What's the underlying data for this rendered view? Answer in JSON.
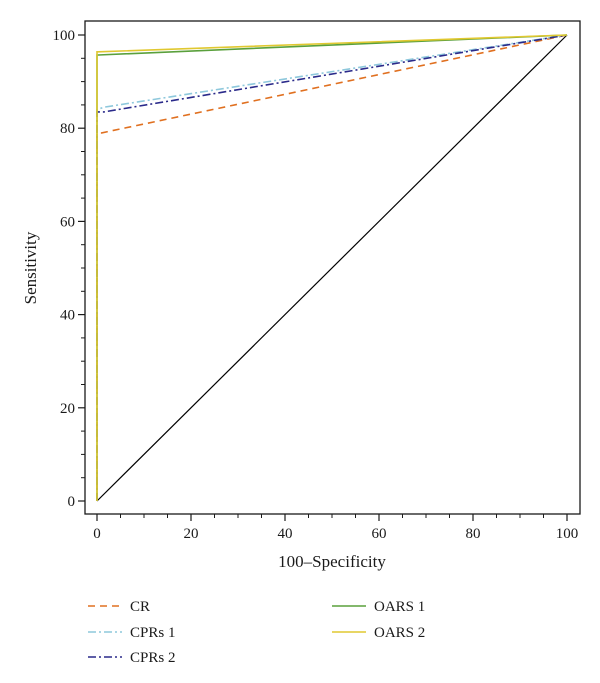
{
  "chart_data": {
    "type": "line",
    "xlabel": "100–Specificity",
    "ylabel": "Sensitivity",
    "xlim": [
      0,
      100
    ],
    "ylim": [
      0,
      100
    ],
    "xticks": [
      "0",
      "20",
      "40",
      "60",
      "80",
      "100"
    ],
    "yticks": [
      "0",
      "20",
      "40",
      "60",
      "80",
      "100"
    ],
    "grid": false,
    "legend_position": "bottom",
    "diagonal": {
      "x": [
        0,
        100
      ],
      "y": [
        0,
        100
      ],
      "color": "#000000"
    },
    "series": [
      {
        "name": "CR",
        "color": "#e07020",
        "dash": "dashed",
        "x": [
          0,
          0,
          1,
          100
        ],
        "y": [
          0,
          79,
          79,
          100
        ]
      },
      {
        "name": "CPRs 1",
        "color": "#8ec8dc",
        "dash": "dashdot",
        "x": [
          0,
          0,
          1.5,
          100
        ],
        "y": [
          0,
          84,
          84.5,
          100
        ]
      },
      {
        "name": "CPRs 2",
        "color": "#2a2a8a",
        "dash": "dashdot",
        "x": [
          0,
          0,
          1.5,
          100
        ],
        "y": [
          0,
          83.5,
          83.5,
          100
        ]
      },
      {
        "name": "OARS 1",
        "color": "#5aa03c",
        "dash": "solid",
        "x": [
          0,
          0,
          0.3,
          100
        ],
        "y": [
          0,
          95.7,
          95.7,
          100
        ]
      },
      {
        "name": "OARS 2",
        "color": "#e0c830",
        "dash": "solid",
        "x": [
          0,
          0,
          0.3,
          100
        ],
        "y": [
          0,
          96.4,
          96.4,
          100
        ]
      }
    ]
  }
}
